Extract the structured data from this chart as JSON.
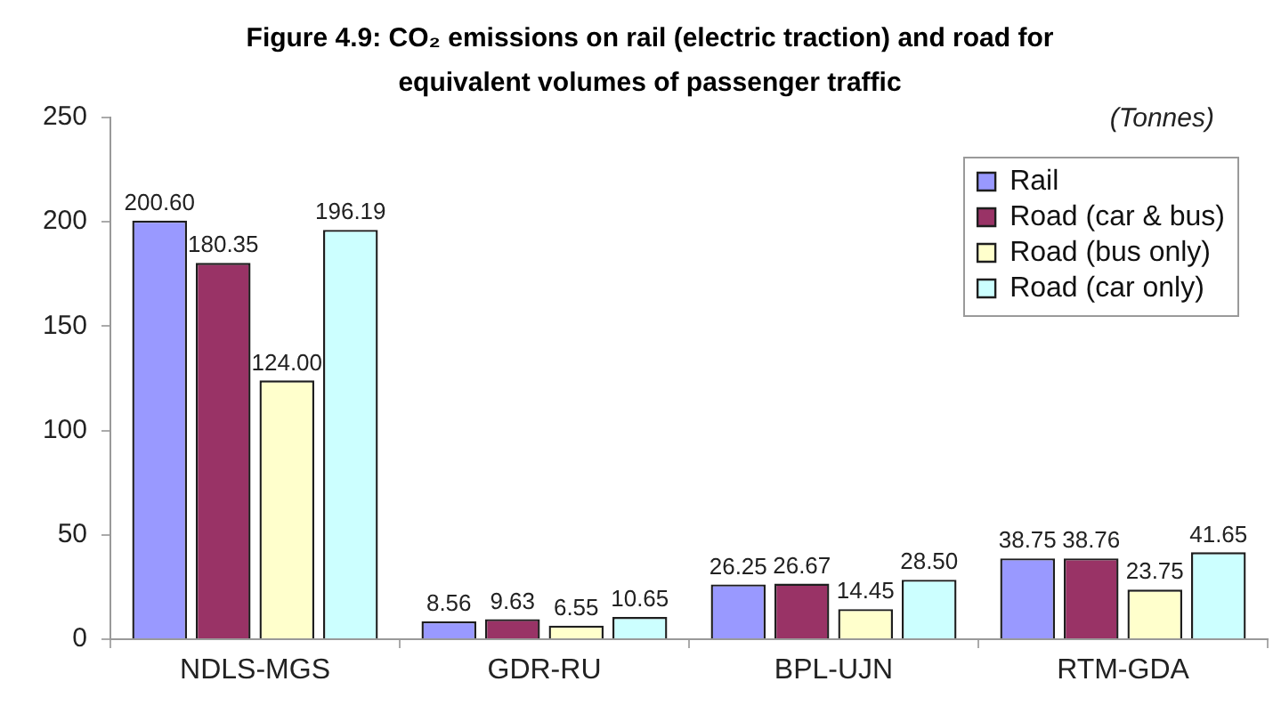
{
  "chart_data": {
    "type": "bar",
    "title": "Figure 4.9: CO₂ emissions on rail (electric traction) and road for equivalent volumes of passenger traffic",
    "ylabel": "(Tonnes)",
    "categories": [
      "NDLS-MGS",
      "GDR-RU",
      "BPL-UJN",
      "RTM-GDA"
    ],
    "series": [
      {
        "name": "Rail",
        "color": "#9999ff",
        "values": [
          200.6,
          8.56,
          26.25,
          38.75
        ],
        "value_labels": [
          "200.60",
          "8.56",
          "26.25",
          "38.75"
        ]
      },
      {
        "name": "Road (car & bus)",
        "color": "#993366",
        "values": [
          180.35,
          9.63,
          26.67,
          38.76
        ],
        "value_labels": [
          "180.35",
          "9.63",
          "26.67",
          "38.76"
        ]
      },
      {
        "name": "Road (bus only)",
        "color": "#ffffcc",
        "values": [
          124.0,
          6.55,
          14.45,
          23.75
        ],
        "value_labels": [
          "124.00",
          "6.55",
          "14.45",
          "23.75"
        ]
      },
      {
        "name": "Road (car only)",
        "color": "#ccffff",
        "values": [
          196.19,
          10.65,
          28.5,
          41.65
        ],
        "value_labels": [
          "196.19",
          "10.65",
          "28.50",
          "41.65"
        ]
      }
    ],
    "ylim": [
      0,
      250
    ],
    "yticks": [
      0,
      50,
      100,
      150,
      200,
      250
    ],
    "grid": false,
    "legend": "top right"
  }
}
